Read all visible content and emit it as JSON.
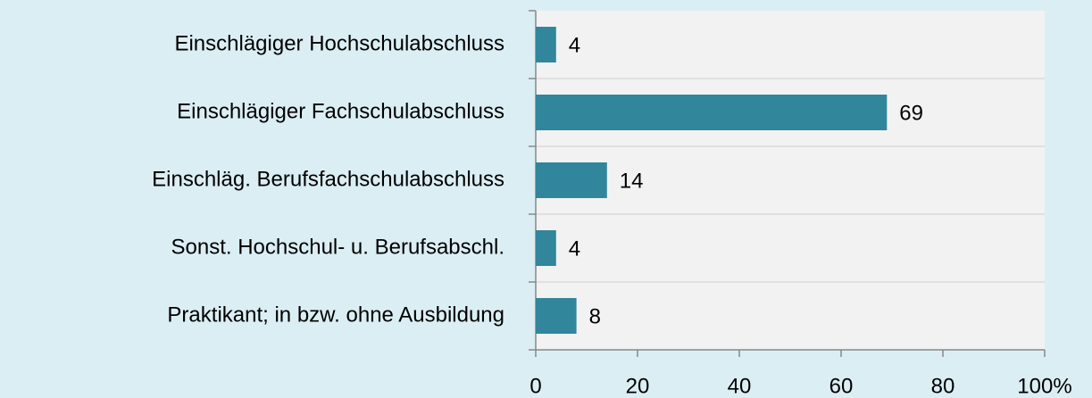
{
  "chart_data": {
    "type": "bar",
    "orientation": "horizontal",
    "categories": [
      "Einschlägiger Hochschulabschluss",
      "Einschlägiger Fachschulabschluss",
      "Einschläg. Berufsfachschulabschluss",
      "Sonst. Hochschul- u. Berufsabschl.",
      "Praktikant; in bzw. ohne Ausbildung"
    ],
    "values": [
      4,
      69,
      14,
      4,
      8
    ],
    "color": "#31869b",
    "xlim": [
      0,
      100
    ],
    "xticks": [
      0,
      20,
      40,
      60,
      80,
      {
        "value": 100,
        "label": "100%"
      }
    ]
  }
}
